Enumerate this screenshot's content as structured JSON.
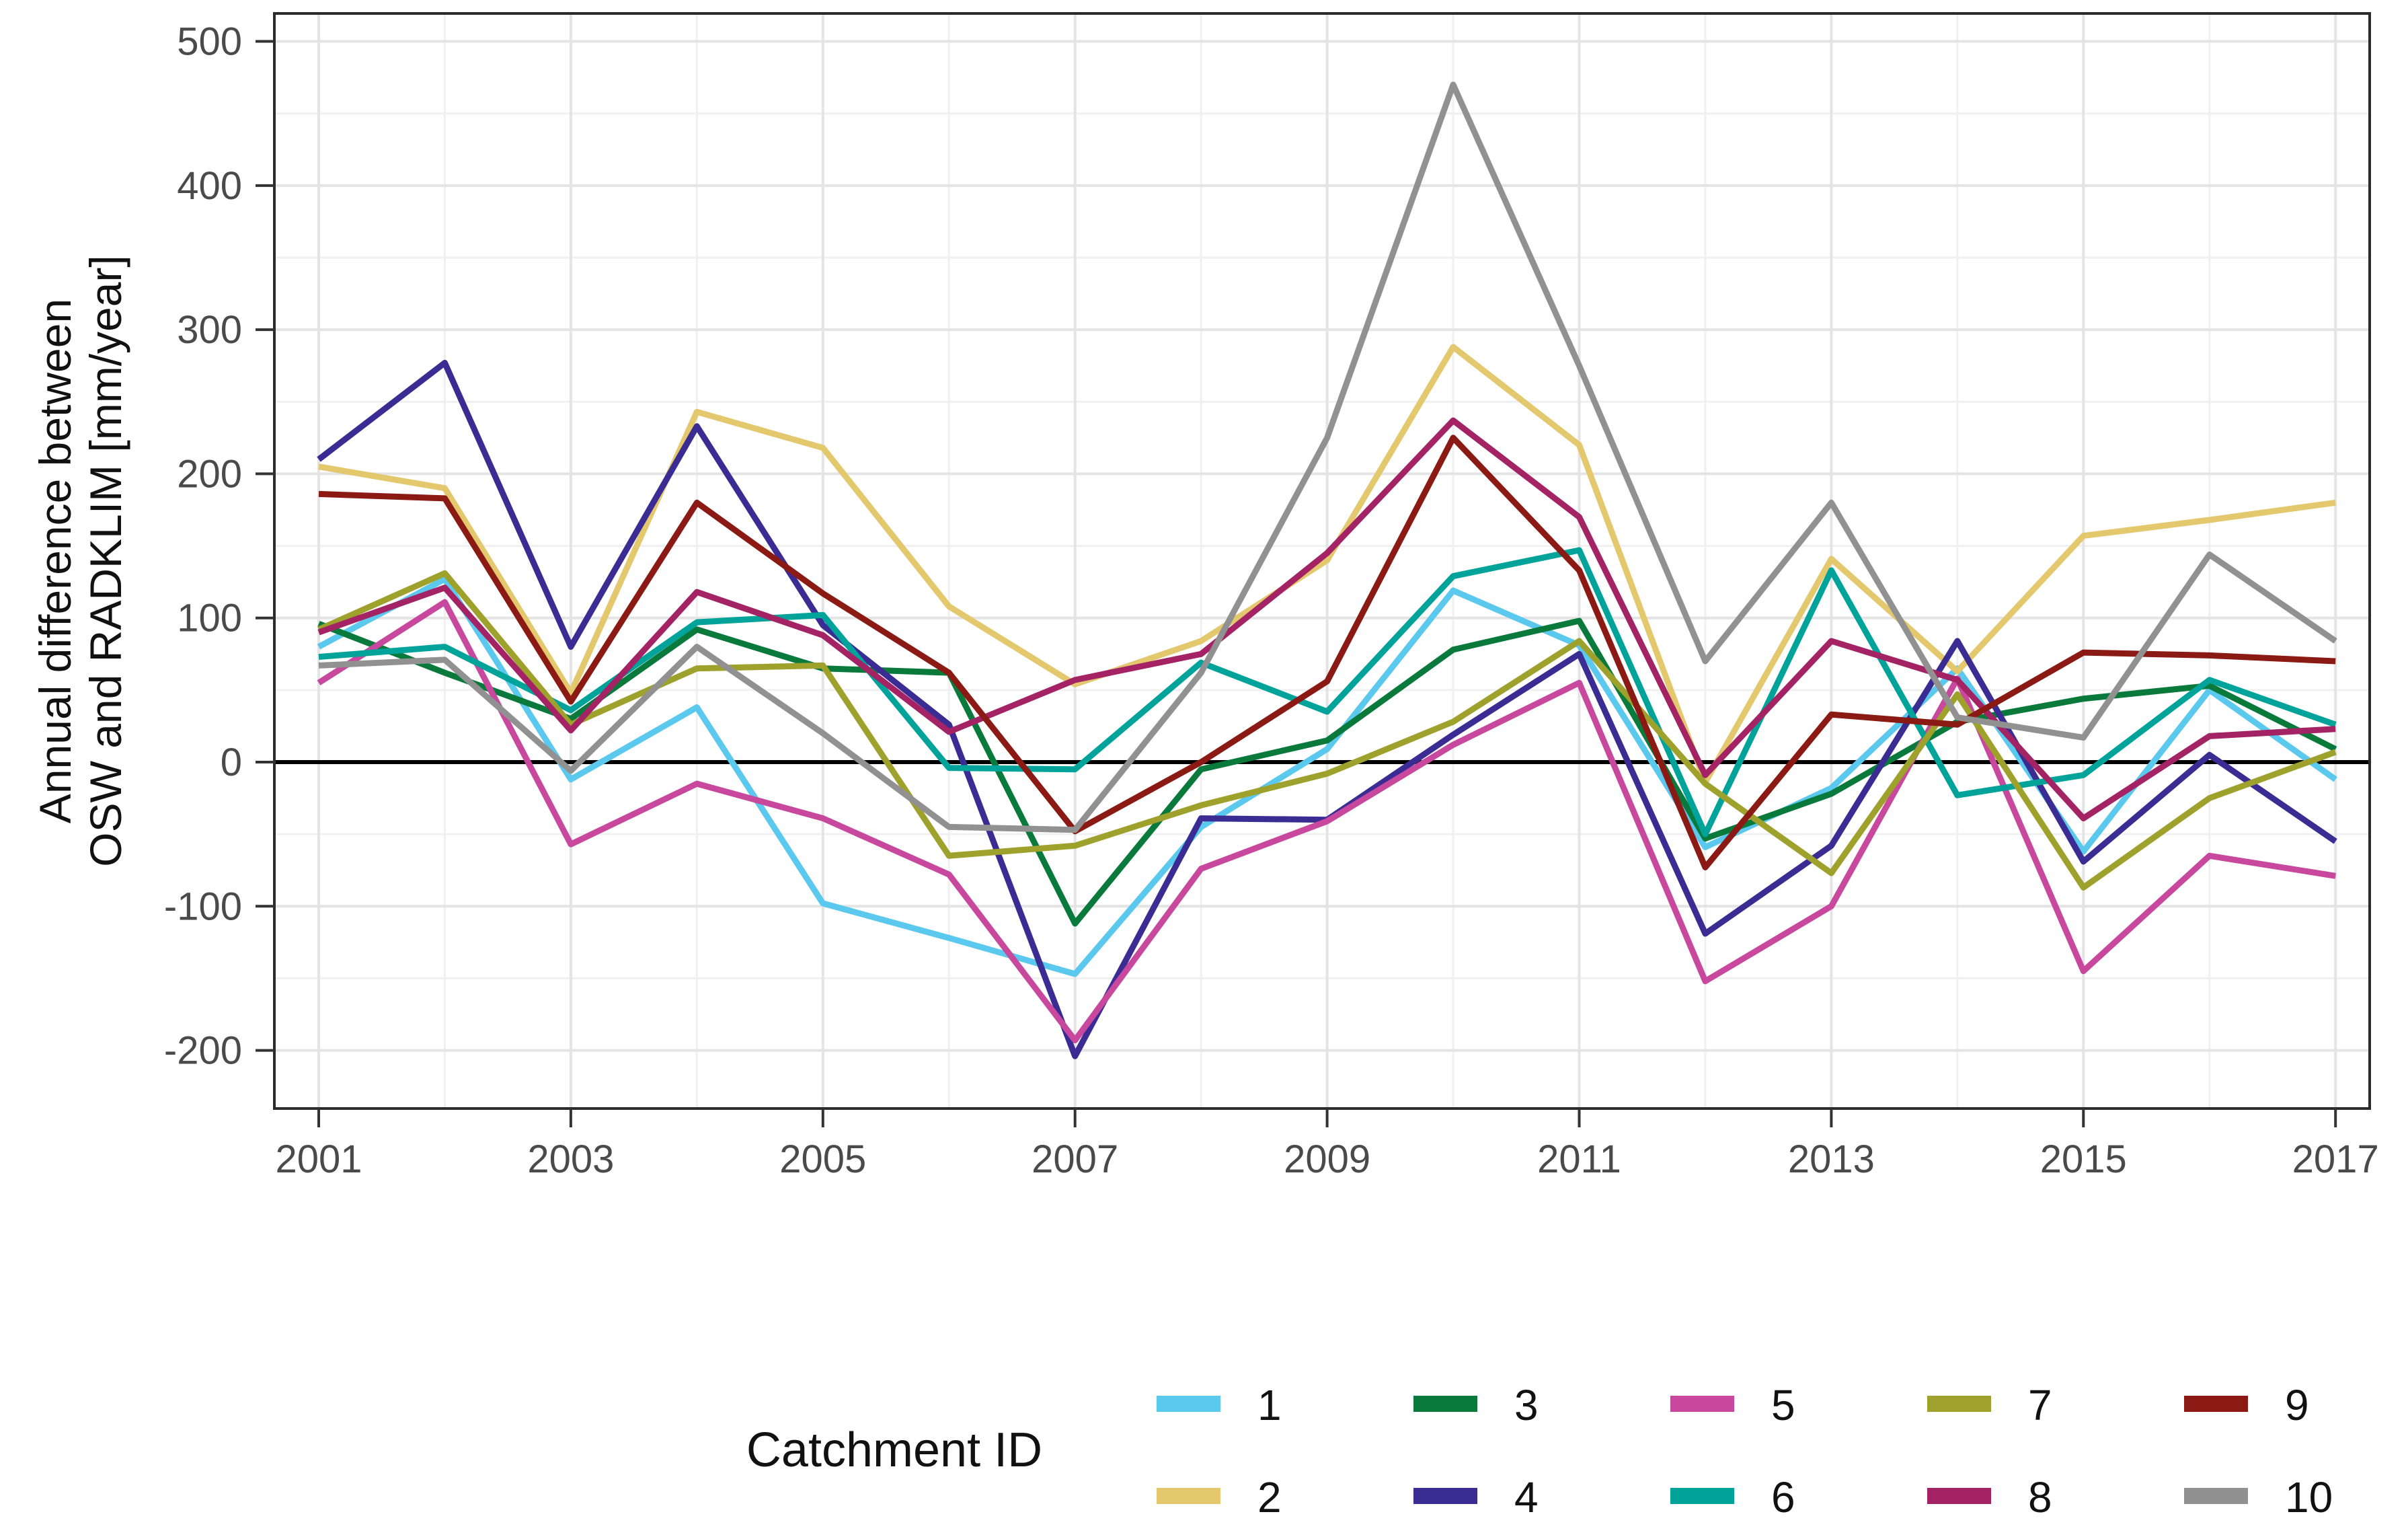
{
  "y_axis": {
    "title_line1": "Annual difference between",
    "title_line2": "OSW and RADKLIM [mm/year]"
  },
  "legend": {
    "title": "Catchment ID",
    "position": "bottom",
    "rows": [
      [
        "1",
        "3",
        "5",
        "7",
        "9"
      ],
      [
        "2",
        "4",
        "6",
        "8",
        "10"
      ]
    ]
  },
  "chart_data": {
    "type": "line",
    "title": "",
    "xlabel": "",
    "ylabel": "Annual difference between OSW and RADKLIM [mm/year]",
    "x": [
      2001,
      2002,
      2003,
      2004,
      2005,
      2006,
      2007,
      2008,
      2009,
      2010,
      2011,
      2012,
      2013,
      2014,
      2015,
      2016,
      2017
    ],
    "x_tick_labels": [
      "2001",
      "2003",
      "2005",
      "2007",
      "2009",
      "2011",
      "2013",
      "2015",
      "2017"
    ],
    "y_ticks": [
      -200,
      -100,
      0,
      100,
      200,
      300,
      400,
      500
    ],
    "ylim": [
      -245,
      520
    ],
    "grid": "major and minor, light gray on white, theme_bw panel with dark border",
    "zero_line": true,
    "legend_position": "bottom",
    "series": [
      {
        "name": "1",
        "color": "#5BC8EE",
        "values": [
          80,
          127,
          -12,
          38,
          -98,
          -122,
          -147,
          -45,
          9,
          119,
          81,
          -59,
          -18,
          65,
          -62,
          50,
          -12
        ]
      },
      {
        "name": "2",
        "color": "#E4C86D",
        "values": [
          205,
          190,
          48,
          243,
          218,
          108,
          54,
          84,
          140,
          288,
          220,
          -14,
          141,
          63,
          157,
          168,
          180
        ]
      },
      {
        "name": "3",
        "color": "#0A7A3C",
        "values": [
          96,
          62,
          30,
          92,
          65,
          62,
          -112,
          -5,
          15,
          78,
          98,
          -53,
          -22,
          28,
          44,
          53,
          9
        ]
      },
      {
        "name": "4",
        "color": "#3B2C94",
        "values": [
          210,
          277,
          80,
          233,
          95,
          26,
          -204,
          -39,
          -40,
          19,
          75,
          -119,
          -58,
          84,
          -69,
          5,
          -55
        ]
      },
      {
        "name": "5",
        "color": "#C8489E",
        "values": [
          55,
          111,
          -57,
          -15,
          -39,
          -78,
          -193,
          -74,
          -41,
          12,
          55,
          -152,
          -100,
          58,
          -145,
          -65,
          -79
        ]
      },
      {
        "name": "6",
        "color": "#00A399",
        "values": [
          73,
          80,
          36,
          97,
          102,
          -4,
          -5,
          69,
          35,
          129,
          147,
          -50,
          133,
          -23,
          -9,
          57,
          26
        ]
      },
      {
        "name": "7",
        "color": "#9EA12B",
        "values": [
          92,
          131,
          26,
          65,
          67,
          -65,
          -58,
          -30,
          -8,
          28,
          84,
          -15,
          -77,
          47,
          -87,
          -25,
          7
        ]
      },
      {
        "name": "8",
        "color": "#A32365",
        "values": [
          90,
          121,
          22,
          118,
          88,
          21,
          57,
          75,
          145,
          237,
          170,
          -9,
          84,
          57,
          -39,
          18,
          23
        ]
      },
      {
        "name": "9",
        "color": "#8B1A14",
        "values": [
          186,
          183,
          42,
          180,
          117,
          62,
          -48,
          0,
          56,
          225,
          133,
          -73,
          33,
          26,
          76,
          74,
          70
        ]
      },
      {
        "name": "10",
        "color": "#919191",
        "values": [
          67,
          71,
          -6,
          80,
          20,
          -45,
          -47,
          62,
          225,
          470,
          275,
          70,
          180,
          31,
          17,
          144,
          84
        ]
      }
    ]
  },
  "style": {
    "background": "#ffffff",
    "panel_border": "#2b2b2b",
    "grid_major": "#e4e4e4",
    "grid_minor": "#f0f0f0",
    "zero_line": "#000000",
    "tick_color": "#333333",
    "tick_label_color": "#4a4a4a",
    "text_color": "#111111"
  }
}
